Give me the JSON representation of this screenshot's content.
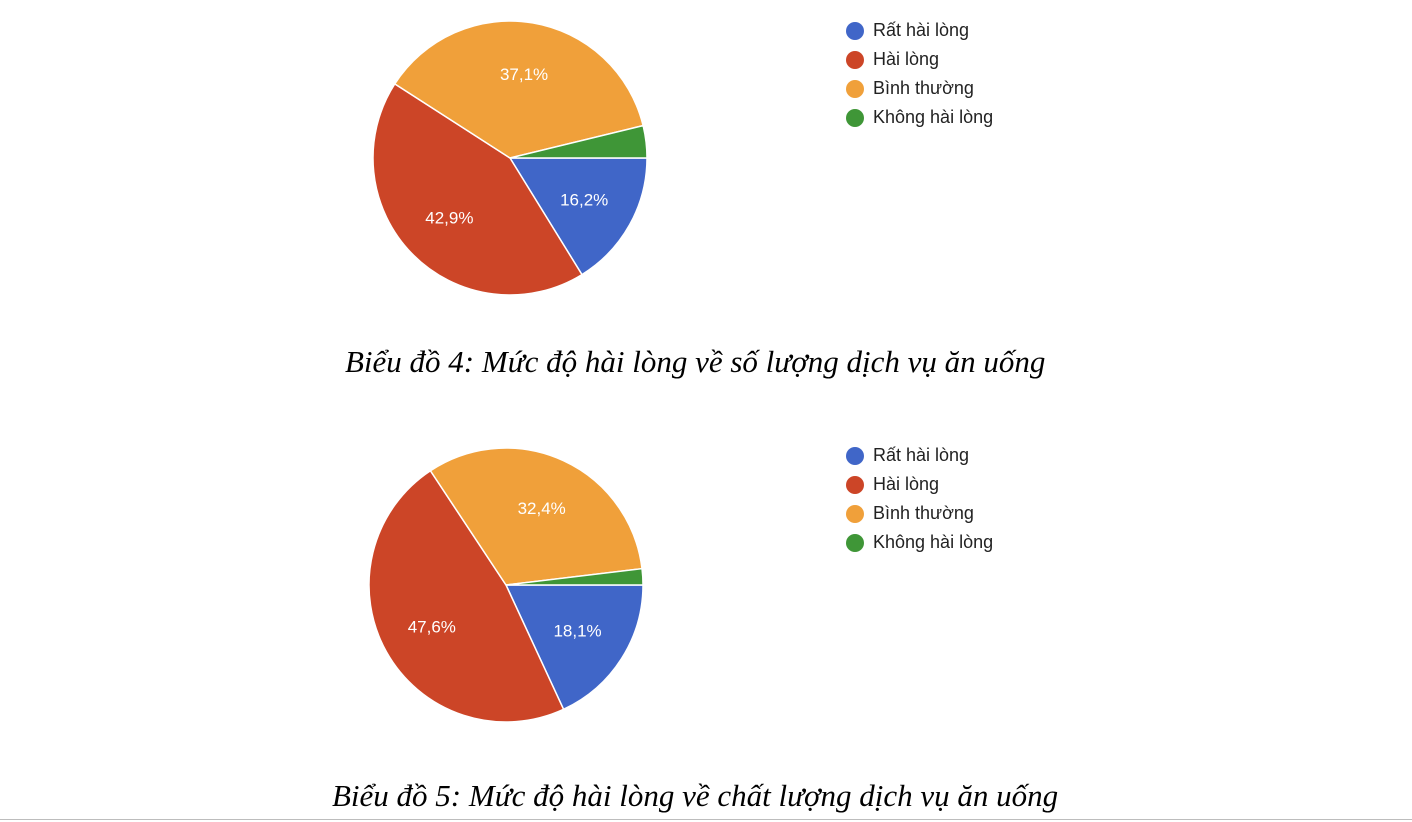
{
  "chart_data": [
    {
      "type": "pie",
      "categories": [
        "Rất hài lòng",
        "Hài lòng",
        "Bình thường",
        "Không hài lòng"
      ],
      "values": [
        16.2,
        42.9,
        37.1,
        3.8
      ],
      "labels": [
        "16,2%",
        "42,9%",
        "37,1%",
        ""
      ],
      "colors": [
        "#4066c8",
        "#cc4527",
        "#f0a03a",
        "#3f9637"
      ],
      "legend_position": "right",
      "caption": "Biểu đồ 4: Mức độ hài lòng về số lượng dịch vụ ăn uống"
    },
    {
      "type": "pie",
      "categories": [
        "Rất hài lòng",
        "Hài lòng",
        "Bình thường",
        "Không hài lòng"
      ],
      "values": [
        18.1,
        47.6,
        32.4,
        1.9
      ],
      "labels": [
        "18,1%",
        "47,6%",
        "32,4%",
        ""
      ],
      "colors": [
        "#4066c8",
        "#cc4527",
        "#f0a03a",
        "#3f9637"
      ],
      "legend_position": "right",
      "caption": "Biểu đồ 5: Mức độ hài lòng về chất lượng dịch vụ ăn uống"
    }
  ]
}
